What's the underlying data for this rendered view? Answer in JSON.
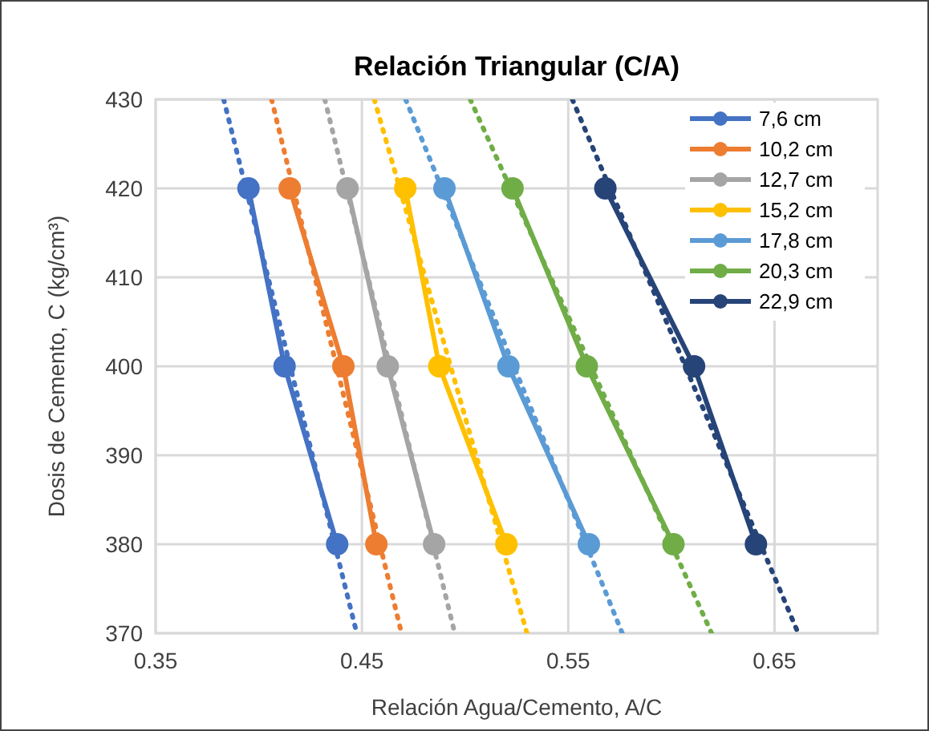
{
  "chart_data": {
    "type": "line",
    "title": "Relación Triangular (C/A)",
    "xlabel": "Relación Agua/Cemento, A/C",
    "ylabel": "Dosis de Cemento, C (kg/cm³)",
    "xlim": [
      0.35,
      0.7
    ],
    "xticks": [
      0.35,
      0.45,
      0.55,
      0.65
    ],
    "ylim": [
      370,
      430
    ],
    "yticks": [
      370,
      380,
      390,
      400,
      410,
      420,
      430
    ],
    "grid": true,
    "legend": "top right",
    "marker": "circle",
    "line_style": "solid",
    "series": [
      {
        "name": "7,6 cm",
        "color": "#4472c4",
        "x": [
          0.395,
          0.4125,
          0.438
        ],
        "values": [
          420,
          400,
          380
        ]
      },
      {
        "name": "10,2 cm",
        "color": "#ed7d31",
        "x": [
          0.415,
          0.441,
          0.457
        ],
        "values": [
          420,
          400,
          380
        ]
      },
      {
        "name": "12,7 cm",
        "color": "#a5a5a5",
        "x": [
          0.443,
          0.4625,
          0.485
        ],
        "values": [
          420,
          400,
          380
        ]
      },
      {
        "name": "15,2 cm",
        "color": "#ffc000",
        "x": [
          0.471,
          0.4875,
          0.52
        ],
        "values": [
          420,
          400,
          380
        ]
      },
      {
        "name": "17,8 cm",
        "color": "#5b9bd5",
        "x": [
          0.49,
          0.521,
          0.56
        ],
        "values": [
          420,
          400,
          380
        ]
      },
      {
        "name": "20,3 cm",
        "color": "#70ad47",
        "x": [
          0.523,
          0.559,
          0.601
        ],
        "values": [
          420,
          400,
          380
        ]
      },
      {
        "name": "22,9 cm",
        "color": "#264478",
        "x": [
          0.568,
          0.611,
          0.641
        ],
        "values": [
          420,
          400,
          380
        ]
      },
      {
        "color": "#4472c4",
        "x": [
          0.383,
          0.4475
        ],
        "values": [
          430,
          370
        ],
        "line_style": "dotted",
        "marker": "none"
      },
      {
        "color": "#ed7d31",
        "x": [
          0.4062,
          0.4692
        ],
        "values": [
          430,
          370
        ],
        "line_style": "dotted",
        "marker": "none"
      },
      {
        "color": "#a5a5a5",
        "x": [
          0.432,
          0.495
        ],
        "values": [
          430,
          370
        ],
        "line_style": "dotted",
        "marker": "none"
      },
      {
        "color": "#ffc000",
        "x": [
          0.456,
          0.53
        ],
        "values": [
          430,
          370
        ],
        "line_style": "dotted",
        "marker": "none"
      },
      {
        "color": "#5b9bd5",
        "x": [
          0.4712,
          0.5762
        ],
        "values": [
          430,
          370
        ],
        "line_style": "dotted",
        "marker": "none"
      },
      {
        "color": "#70ad47",
        "x": [
          0.5025,
          0.6195
        ],
        "values": [
          430,
          370
        ],
        "line_style": "dotted",
        "marker": "none"
      },
      {
        "color": "#264478",
        "x": [
          0.552,
          0.6615
        ],
        "values": [
          430,
          370
        ],
        "line_style": "dotted",
        "marker": "none"
      }
    ]
  }
}
